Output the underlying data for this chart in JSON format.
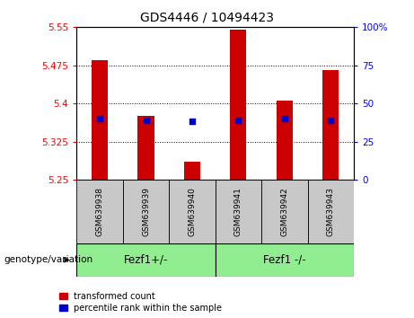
{
  "title": "GDS4446 / 10494423",
  "samples": [
    "GSM639938",
    "GSM639939",
    "GSM639940",
    "GSM639941",
    "GSM639942",
    "GSM639943"
  ],
  "transformed_counts": [
    5.485,
    5.375,
    5.285,
    5.545,
    5.405,
    5.465
  ],
  "percentile_ranks": [
    40,
    39,
    38,
    39,
    40,
    39
  ],
  "y_min": 5.25,
  "y_max": 5.55,
  "y_ticks": [
    5.25,
    5.325,
    5.4,
    5.475,
    5.55
  ],
  "y_tick_labels": [
    "5.25",
    "5.325",
    "5.4",
    "5.475",
    "5.55"
  ],
  "right_y_ticks": [
    0,
    25,
    50,
    75,
    100
  ],
  "right_y_tick_labels": [
    "0",
    "25",
    "50",
    "75",
    "100%"
  ],
  "bar_color": "#cc0000",
  "dot_color": "#0000cc",
  "bar_baseline": 5.25,
  "group1_label": "Fezf1+/-",
  "group2_label": "Fezf1 -/-",
  "group1_indices": [
    0,
    1,
    2
  ],
  "group2_indices": [
    3,
    4,
    5
  ],
  "sample_bg_color": "#c8c8c8",
  "group_color": "#90ee90",
  "legend_red_label": "transformed count",
  "legend_blue_label": "percentile rank within the sample",
  "genotype_label": "genotype/variation",
  "bar_width": 0.35,
  "dot_size": 22,
  "title_fontsize": 10,
  "tick_fontsize": 7.5,
  "sample_fontsize": 6.5,
  "group_fontsize": 8.5,
  "legend_fontsize": 7,
  "genotype_fontsize": 7.5
}
